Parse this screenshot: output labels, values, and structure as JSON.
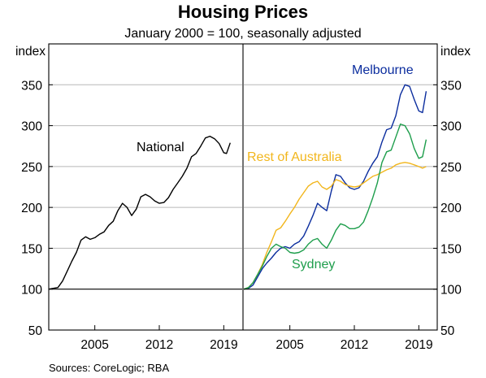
{
  "chart_data": {
    "type": "line",
    "title": "Housing Prices",
    "subtitle": "January 2000 = 100, seasonally adjusted",
    "source": "Sources:   CoreLogic; RBA",
    "ylim": [
      50,
      400
    ],
    "y_ticks": [
      50,
      100,
      150,
      200,
      250,
      300,
      350
    ],
    "y_unit_left": "index",
    "y_unit_right": "index",
    "x_ticks": [
      "2005",
      "2012",
      "2019"
    ],
    "baseline": 100,
    "grid": true,
    "panels": [
      {
        "name": "left",
        "xlim": [
          2000.0,
          2021.0
        ],
        "series": [
          {
            "name": "National",
            "label": "National",
            "color": "#000000",
            "x": [
              2000.0,
              2000.5,
              2001.0,
              2001.5,
              2002.0,
              2002.5,
              2003.0,
              2003.5,
              2004.0,
              2004.5,
              2005.0,
              2005.5,
              2006.0,
              2006.5,
              2007.0,
              2007.5,
              2008.0,
              2008.5,
              2009.0,
              2009.5,
              2010.0,
              2010.5,
              2011.0,
              2011.5,
              2012.0,
              2012.5,
              2013.0,
              2013.5,
              2014.0,
              2014.5,
              2015.0,
              2015.5,
              2016.0,
              2016.5,
              2017.0,
              2017.5,
              2018.0,
              2018.5,
              2019.0,
              2019.3,
              2019.7
            ],
            "y": [
              100,
              101,
              102,
              110,
              122,
              134,
              145,
              160,
              164,
              161,
              163,
              167,
              170,
              178,
              183,
              196,
              205,
              200,
              190,
              198,
              213,
              216,
              213,
              208,
              205,
              206,
              212,
              222,
              230,
              238,
              248,
              262,
              266,
              275,
              285,
              287,
              284,
              278,
              267,
              266,
              279
            ]
          }
        ]
      },
      {
        "name": "right",
        "xlim": [
          2000.0,
          2021.0
        ],
        "series": [
          {
            "name": "Melbourne",
            "label": "Melbourne",
            "color": "#0b2d9e",
            "x": [
              2000.0,
              2000.5,
              2001.0,
              2001.5,
              2002.0,
              2002.5,
              2003.0,
              2003.5,
              2004.0,
              2004.5,
              2005.0,
              2005.5,
              2006.0,
              2006.5,
              2007.0,
              2007.5,
              2008.0,
              2008.5,
              2009.0,
              2009.5,
              2010.0,
              2010.5,
              2011.0,
              2011.5,
              2012.0,
              2012.5,
              2013.0,
              2013.5,
              2014.0,
              2014.5,
              2015.0,
              2015.5,
              2016.0,
              2016.5,
              2017.0,
              2017.5,
              2018.0,
              2018.5,
              2019.0,
              2019.4,
              2019.8
            ],
            "y": [
              100,
              101,
              105,
              115,
              125,
              132,
              138,
              145,
              150,
              152,
              150,
              155,
              158,
              165,
              177,
              190,
              205,
              200,
              196,
              220,
              240,
              238,
              230,
              224,
              222,
              224,
              232,
              244,
              254,
              262,
              280,
              295,
              297,
              312,
              338,
              350,
              348,
              332,
              318,
              316,
              342
            ]
          },
          {
            "name": "Rest of Australia",
            "label": "Rest of Australia",
            "color": "#f2b61c",
            "x": [
              2000.0,
              2000.5,
              2001.0,
              2001.5,
              2002.0,
              2002.5,
              2003.0,
              2003.5,
              2004.0,
              2004.5,
              2005.0,
              2005.5,
              2006.0,
              2006.5,
              2007.0,
              2007.5,
              2008.0,
              2008.5,
              2009.0,
              2009.5,
              2010.0,
              2010.5,
              2011.0,
              2011.5,
              2012.0,
              2012.5,
              2013.0,
              2013.5,
              2014.0,
              2014.5,
              2015.0,
              2015.5,
              2016.0,
              2016.5,
              2017.0,
              2017.5,
              2018.0,
              2018.5,
              2019.0,
              2019.4,
              2019.8
            ],
            "y": [
              100,
              102,
              108,
              118,
              130,
              145,
              158,
              172,
              175,
              183,
              192,
              200,
              210,
              218,
              226,
              230,
              232,
              225,
              222,
              226,
              234,
              232,
              228,
              226,
              225,
              226,
              230,
              234,
              238,
              240,
              243,
              246,
              248,
              252,
              254,
              255,
              254,
              252,
              250,
              248,
              250
            ]
          },
          {
            "name": "Sydney",
            "label": "Sydney",
            "color": "#1e9e4c",
            "x": [
              2000.0,
              2000.5,
              2001.0,
              2001.5,
              2002.0,
              2002.5,
              2003.0,
              2003.5,
              2004.0,
              2004.5,
              2005.0,
              2005.5,
              2006.0,
              2006.5,
              2007.0,
              2007.5,
              2008.0,
              2008.5,
              2009.0,
              2009.5,
              2010.0,
              2010.5,
              2011.0,
              2011.5,
              2012.0,
              2012.5,
              2013.0,
              2013.5,
              2014.0,
              2014.5,
              2015.0,
              2015.5,
              2016.0,
              2016.5,
              2017.0,
              2017.5,
              2018.0,
              2018.5,
              2019.0,
              2019.4,
              2019.8
            ],
            "y": [
              100,
              102,
              108,
              118,
              128,
              140,
              150,
              155,
              152,
              150,
              145,
              144,
              145,
              148,
              155,
              160,
              162,
              155,
              150,
              160,
              172,
              180,
              178,
              174,
              174,
              176,
              182,
              196,
              212,
              230,
              255,
              268,
              270,
              286,
              302,
              300,
              290,
              272,
              260,
              262,
              283
            ]
          }
        ]
      }
    ]
  }
}
